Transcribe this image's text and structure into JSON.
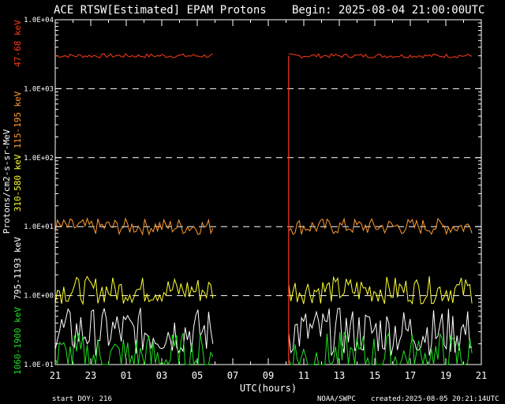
{
  "header": {
    "title": "ACE RTSW[Estimated] EPAM Protons",
    "begin": "Begin: 2025-08-04 21:00:00UTC"
  },
  "footer": {
    "start_doy": "start DOY:  216",
    "source": "NOAA/SWPC",
    "created": "created:2025-08-05 20:21:14UTC"
  },
  "chart_data": {
    "type": "line",
    "title": "ACE RTSW[Estimated] EPAM Protons",
    "xlabel": "UTC(hours)",
    "ylabel": "Protons/cm2-s-sr-MeV",
    "yscale": "log",
    "ylim": [
      0.1,
      10000
    ],
    "xlim_hours": [
      0,
      24
    ],
    "x_tick_labels": [
      "21",
      "23",
      "01",
      "03",
      "05",
      "07",
      "09",
      "11",
      "13",
      "15",
      "17",
      "19",
      "21"
    ],
    "y_tick_labels": [
      "1.0E-01",
      "1.0E+00",
      "1.0E+01",
      "1.0E+02",
      "1.0E+03",
      "1.0E+04"
    ],
    "grid": "dashed horizontal at decades",
    "series": [
      {
        "name": "47-68 keV",
        "color": "#ff3a1a",
        "level": 3000,
        "jitter": 0.03,
        "gaps": [
          [
            9.0,
            13.0
          ]
        ],
        "partial": [
          [
            13.0,
            15.3,
            "#ffffff",
            0.25
          ]
        ]
      },
      {
        "name": "115-195 keV",
        "color": "#ff9a30",
        "level": 10,
        "jitter": 0.12
      },
      {
        "name": "310-580 keV",
        "color": "#ffff30",
        "level": 1.2,
        "jitter": 0.2
      },
      {
        "name": "795-1193 keV",
        "color": "#ffffff",
        "level": 0.3,
        "jitter": 0.35
      },
      {
        "name": "1060-1900 keV",
        "color": "#20e020",
        "level": 0.12,
        "jitter": 0.4
      }
    ],
    "data_gap_hours": [
      8.95,
      13.15
    ],
    "drop_hour": 13.15
  }
}
